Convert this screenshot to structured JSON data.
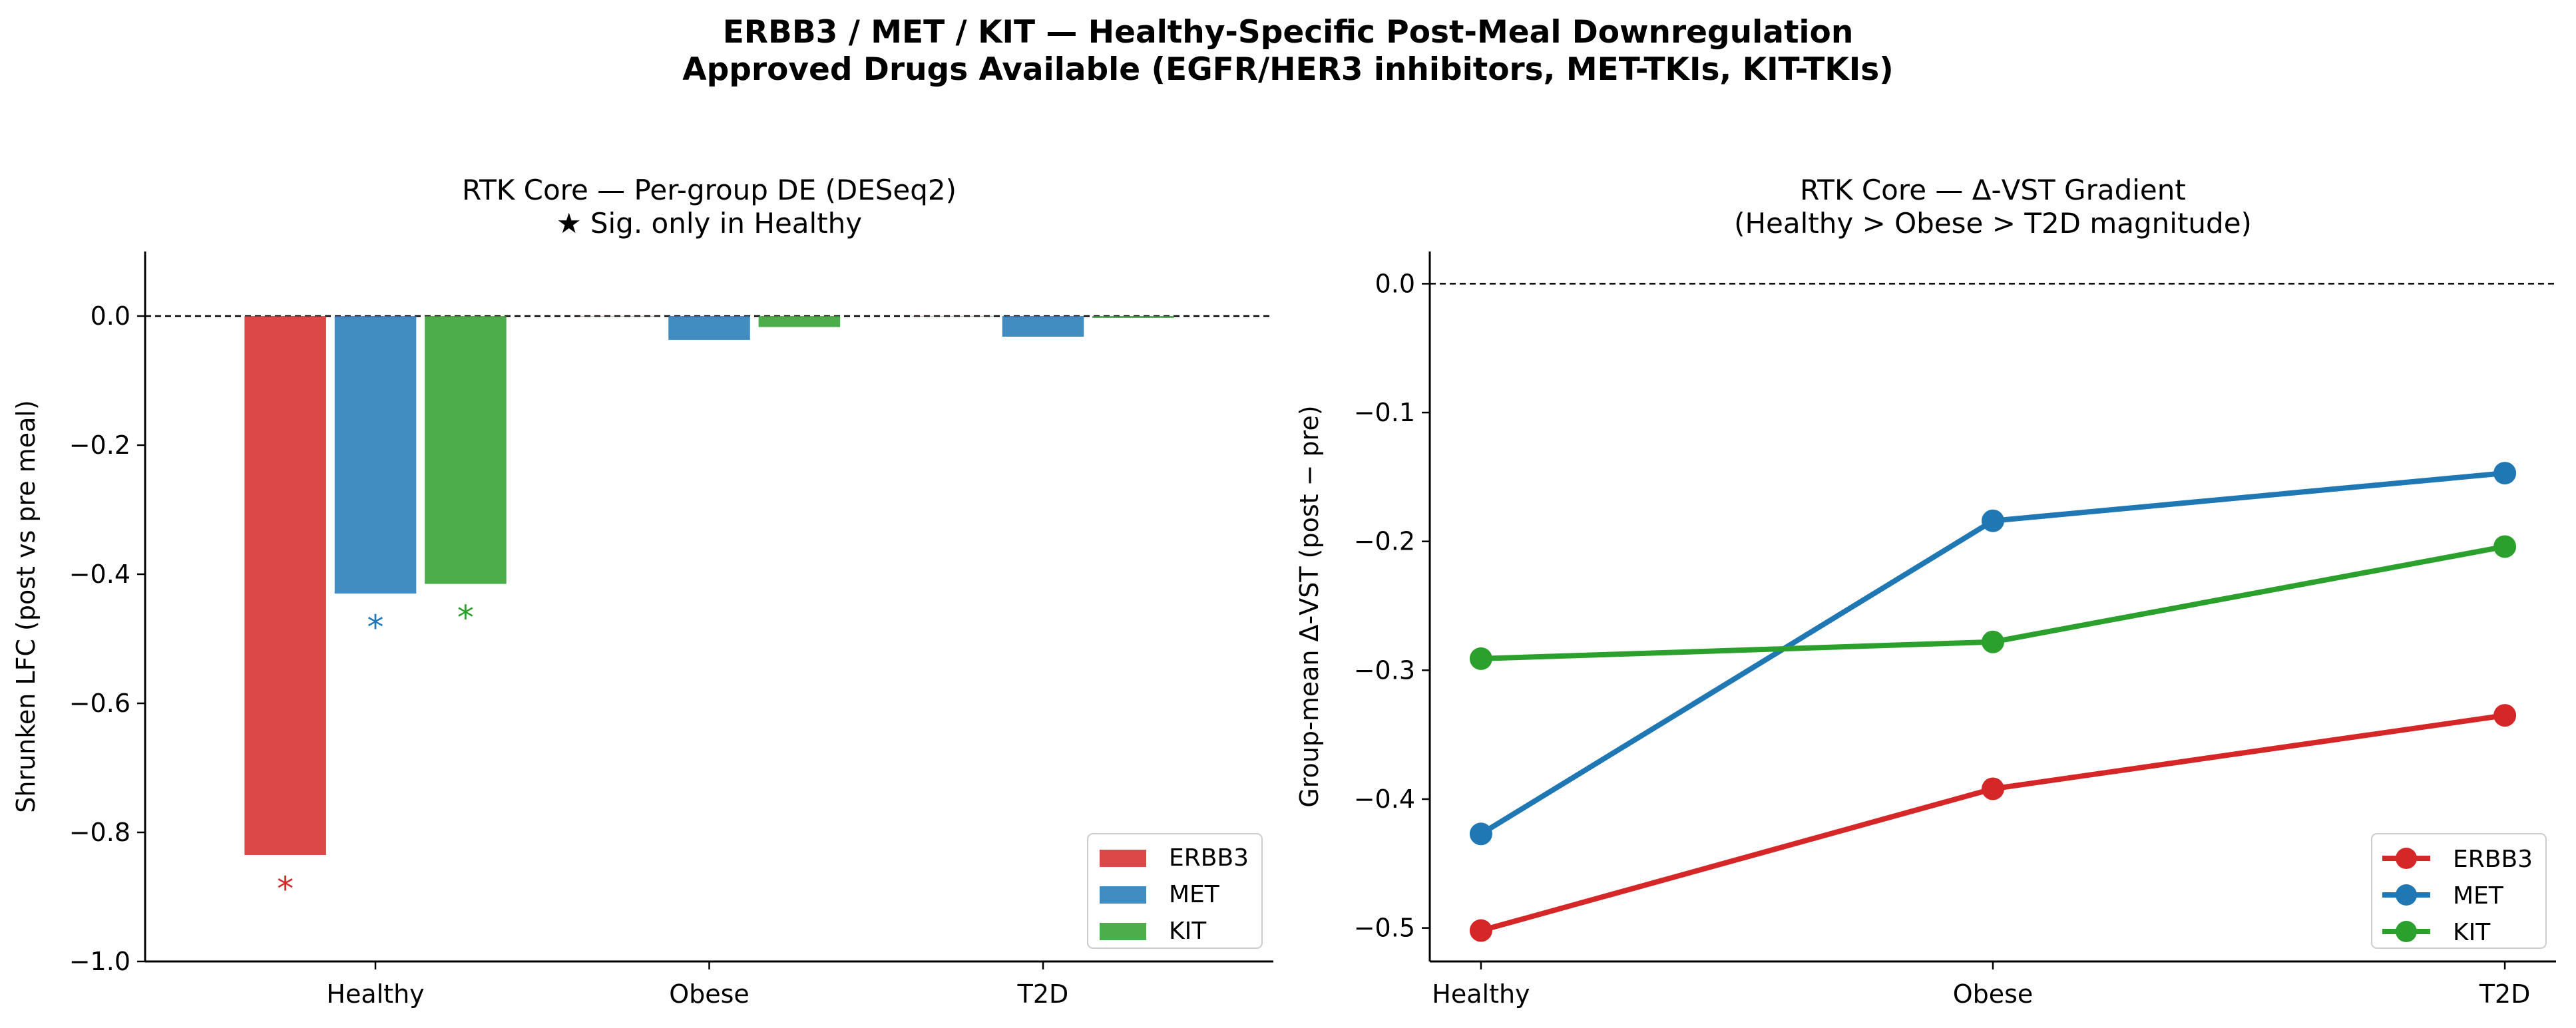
{
  "figure": {
    "suptitle_line1": "ERBB3 / MET / KIT — Healthy-Specific Post-Meal Downregulation",
    "suptitle_line2": "Approved Drugs Available (EGFR/HER3 inhibitors, MET-TKIs, KIT-TKIs)"
  },
  "chart_data": [
    {
      "type": "bar",
      "title_line1": "RTK Core — Per-group DE (DESeq2)",
      "title_line2": "★ Sig. only in Healthy",
      "xlabel": "",
      "ylabel": "Shrunken LFC (post vs pre meal)",
      "categories": [
        "Healthy",
        "Obese",
        "T2D"
      ],
      "ylim": [
        -1.0,
        0.1
      ],
      "yticks": [
        0.0,
        -0.2,
        -0.4,
        -0.6,
        -0.8,
        -1.0
      ],
      "ytick_labels": [
        "0.0",
        "−0.2",
        "−0.4",
        "−0.6",
        "−0.8",
        "−1.0"
      ],
      "reference_line": 0.0,
      "legend_position": "lower-right",
      "series": [
        {
          "name": "ERBB3",
          "color": "#d62728",
          "values": [
            -0.835,
            0.0,
            0.0
          ],
          "significant": [
            true,
            false,
            false
          ]
        },
        {
          "name": "MET",
          "color": "#1f77b4",
          "values": [
            -0.43,
            -0.037,
            -0.032
          ],
          "significant": [
            true,
            false,
            false
          ]
        },
        {
          "name": "KIT",
          "color": "#2ca02c",
          "values": [
            -0.415,
            -0.017,
            -0.003
          ],
          "significant": [
            true,
            false,
            false
          ]
        }
      ],
      "significance_marker": "*"
    },
    {
      "type": "line",
      "title_line1": "RTK Core — Δ-VST Gradient",
      "title_line2": "(Healthy > Obese > T2D magnitude)",
      "xlabel": "",
      "ylabel": "Group-mean Δ-VST (post − pre)",
      "categories": [
        "Healthy",
        "Obese",
        "T2D"
      ],
      "ylim": [
        -0.526,
        0.025
      ],
      "yticks": [
        0.0,
        -0.1,
        -0.2,
        -0.3,
        -0.4,
        -0.5
      ],
      "ytick_labels": [
        "0.0",
        "−0.1",
        "−0.2",
        "−0.3",
        "−0.4",
        "−0.5"
      ],
      "reference_line": 0.0,
      "legend_position": "lower-right",
      "series": [
        {
          "name": "ERBB3",
          "color": "#d62728",
          "values": [
            -0.502,
            -0.392,
            -0.335
          ]
        },
        {
          "name": "MET",
          "color": "#1f77b4",
          "values": [
            -0.427,
            -0.184,
            -0.147
          ]
        },
        {
          "name": "KIT",
          "color": "#2ca02c",
          "values": [
            -0.291,
            -0.278,
            -0.204
          ]
        }
      ]
    }
  ]
}
